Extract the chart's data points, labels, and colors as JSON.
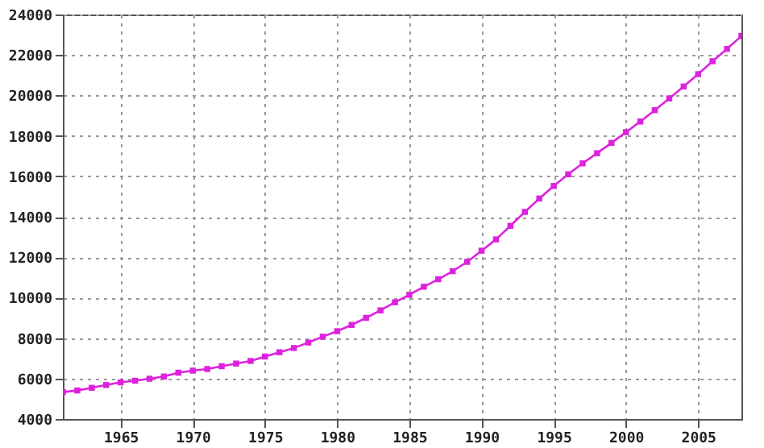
{
  "chart_data": {
    "type": "line",
    "x": [
      1961,
      1962,
      1963,
      1964,
      1965,
      1966,
      1967,
      1968,
      1969,
      1970,
      1971,
      1972,
      1973,
      1974,
      1975,
      1976,
      1977,
      1978,
      1979,
      1980,
      1981,
      1982,
      1983,
      1984,
      1985,
      1986,
      1987,
      1988,
      1989,
      1990,
      1991,
      1992,
      1993,
      1994,
      1995,
      1996,
      1997,
      1998,
      1999,
      2000,
      2001,
      2002,
      2003,
      2004,
      2005,
      2006,
      2007,
      2008
    ],
    "series": [
      {
        "color": "#dd22dd",
        "values": [
          5330,
          5410,
          5540,
          5680,
          5810,
          5890,
          5990,
          6100,
          6290,
          6390,
          6470,
          6610,
          6740,
          6870,
          7090,
          7300,
          7510,
          7780,
          8070,
          8340,
          8650,
          9000,
          9370,
          9770,
          10140,
          10540,
          10910,
          11310,
          11770,
          12320,
          12880,
          13550,
          14240,
          14900,
          15520,
          16100,
          16640,
          17140,
          17650,
          18180,
          18710,
          19270,
          19850,
          20440,
          21050,
          21690,
          22300,
          22940
        ]
      }
    ],
    "xlim": [
      1961,
      2008
    ],
    "xticks": [
      1965,
      1970,
      1975,
      1980,
      1985,
      1990,
      1995,
      2000,
      2005
    ],
    "ylim": [
      4000,
      24000
    ],
    "yticks": [
      4000,
      6000,
      8000,
      10000,
      12000,
      14000,
      16000,
      18000,
      20000,
      22000,
      24000
    ],
    "grid": true,
    "marker": "square",
    "line_style": "solid"
  }
}
